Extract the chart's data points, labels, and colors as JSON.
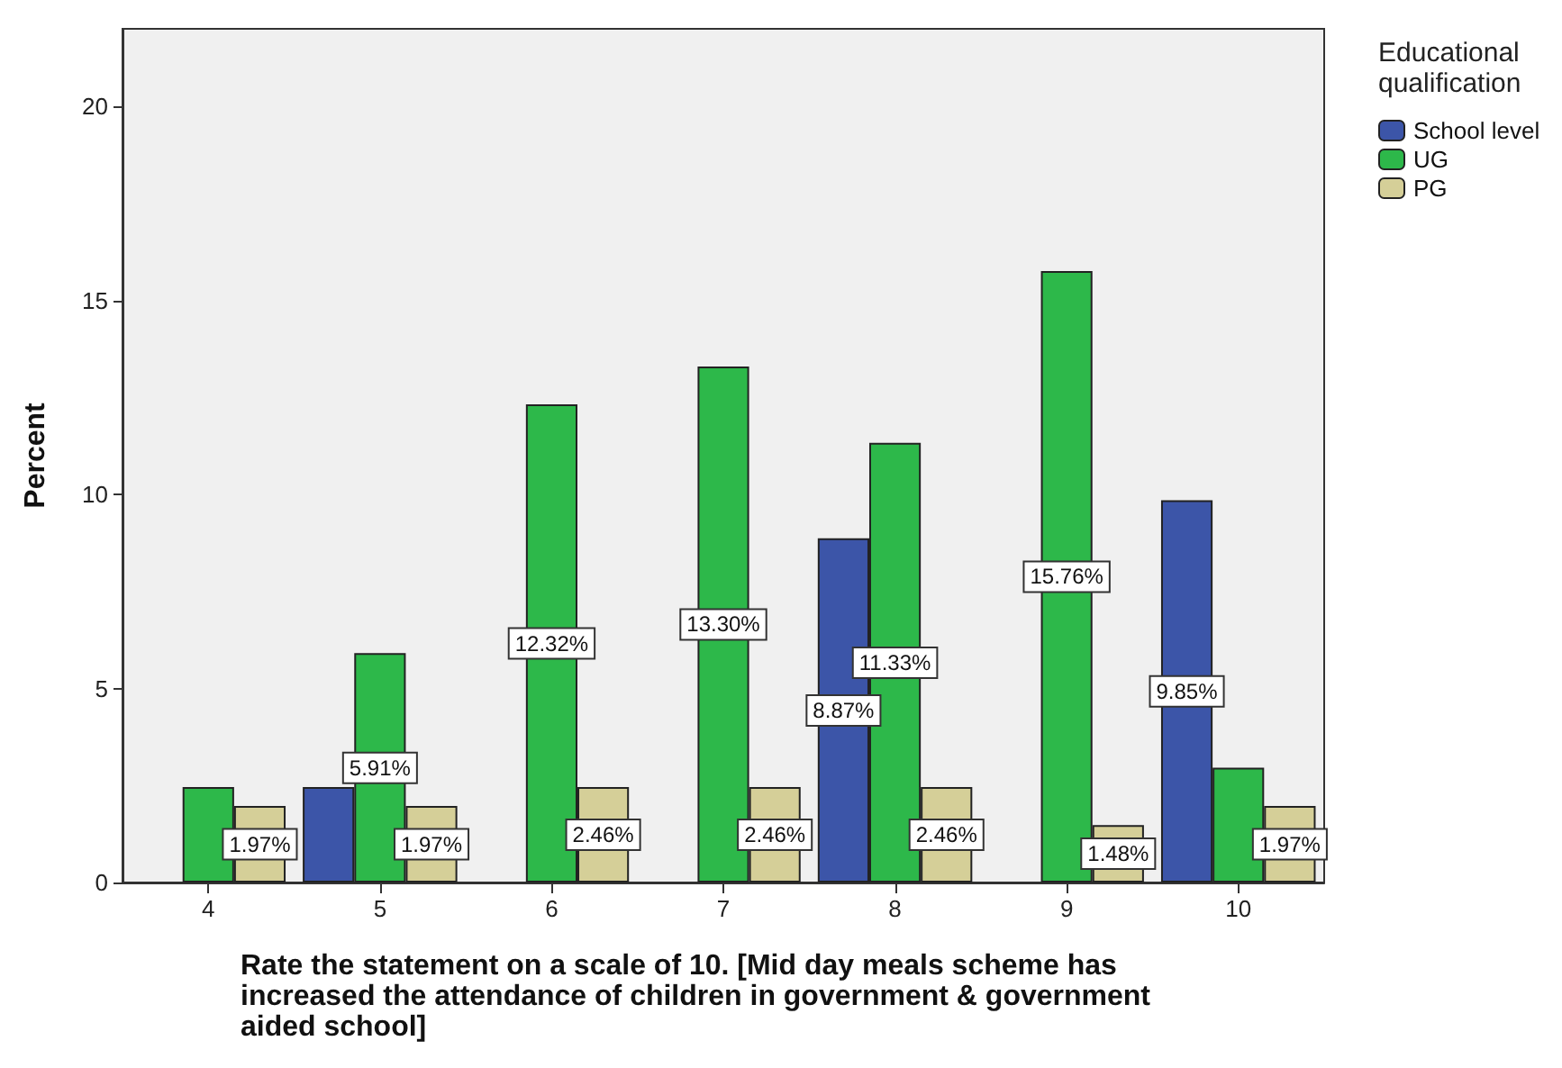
{
  "chart_data": {
    "type": "bar",
    "xlabel": "Rate the statement on a scale of 10. [Mid day meals scheme has increased the attendance of children in government & government aided school]",
    "ylabel": "Percent",
    "legend_title": "Educational qualification",
    "categories": [
      "4",
      "5",
      "6",
      "7",
      "8",
      "9",
      "10"
    ],
    "series": [
      {
        "name": "School level",
        "color": "#3c55a8",
        "values": [
          null,
          2.46,
          null,
          null,
          8.87,
          null,
          9.85
        ],
        "value_labels": [
          null,
          null,
          null,
          null,
          "8.87%",
          null,
          "9.85%"
        ]
      },
      {
        "name": "UG",
        "color": "#2db84a",
        "values": [
          2.46,
          5.91,
          12.32,
          13.3,
          11.33,
          15.76,
          2.96
        ],
        "value_labels": [
          null,
          "5.91%",
          "12.32%",
          "13.30%",
          "11.33%",
          "15.76%",
          null
        ]
      },
      {
        "name": "PG",
        "color": "#d5cf98",
        "values": [
          1.97,
          1.97,
          2.46,
          2.46,
          2.46,
          1.48,
          1.97
        ],
        "value_labels": [
          "1.97%",
          "1.97%",
          "2.46%",
          "2.46%",
          "2.46%",
          "1.48%",
          "1.97%"
        ]
      }
    ],
    "ylim": [
      0,
      22
    ],
    "yticks": [
      0,
      5,
      10,
      15,
      20
    ],
    "grid": false,
    "legend": "right"
  }
}
